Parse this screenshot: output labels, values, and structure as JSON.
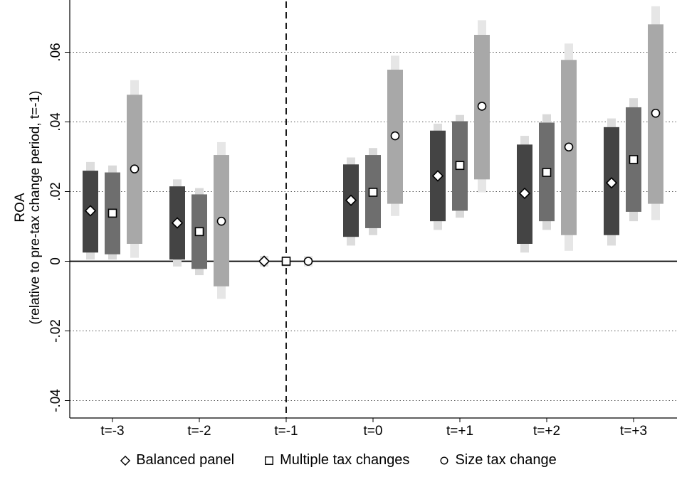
{
  "chart_data": {
    "type": "error-bar",
    "ylabel": "ROA",
    "ylabel_sub": "(relative to pre-tax change period, t=-1)",
    "ylim": [
      -0.045,
      0.075
    ],
    "yticks": [
      -0.04,
      -0.02,
      0,
      0.02,
      0.04,
      0.06
    ],
    "ytick_labels": [
      "-.04",
      "-.02",
      "0",
      ".02",
      ".04",
      ".06"
    ],
    "grid": "horizontal dotted",
    "reference_line_x": "t=-1",
    "categories": [
      "t=-3",
      "t=-2",
      "t=-1",
      "t=0",
      "t=+1",
      "t=+2",
      "t=+3"
    ],
    "legend_position": "bottom",
    "series": [
      {
        "name": "Balanced panel",
        "marker": "diamond",
        "color_bar": "#444444",
        "color_outer": "#dddddd",
        "values": [
          0.0145,
          0.011,
          0.0,
          0.0175,
          0.0245,
          0.0195,
          0.0225
        ],
        "ci_inner": [
          [
            0.0025,
            0.026
          ],
          [
            0.0005,
            0.0215
          ],
          [
            0,
            0
          ],
          [
            0.007,
            0.0278
          ],
          [
            0.0115,
            0.0375
          ],
          [
            0.005,
            0.0335
          ],
          [
            0.0075,
            0.0385
          ]
        ],
        "ci_outer": [
          [
            0.0005,
            0.0285
          ],
          [
            -0.0015,
            0.0235
          ],
          [
            -0.0015,
            0.0015
          ],
          [
            0.0045,
            0.0298
          ],
          [
            0.009,
            0.0395
          ],
          [
            0.0025,
            0.036
          ],
          [
            0.0045,
            0.041
          ]
        ]
      },
      {
        "name": "Multiple tax changes",
        "marker": "square",
        "color_bar": "#6e6e6e",
        "color_outer": "#d9d9d9",
        "values": [
          0.0138,
          0.0085,
          0.0,
          0.0198,
          0.0275,
          0.0255,
          0.0292
        ],
        "ci_inner": [
          [
            0.002,
            0.0255
          ],
          [
            -0.0022,
            0.0192
          ],
          [
            0,
            0
          ],
          [
            0.0095,
            0.0305
          ],
          [
            0.0145,
            0.0402
          ],
          [
            0.0115,
            0.0398
          ],
          [
            0.0142,
            0.0442
          ]
        ],
        "ci_outer": [
          [
            0.0005,
            0.0275
          ],
          [
            -0.004,
            0.021
          ],
          [
            -0.0015,
            0.0015
          ],
          [
            0.0075,
            0.0325
          ],
          [
            0.0125,
            0.042
          ],
          [
            0.009,
            0.0422
          ],
          [
            0.0115,
            0.0468
          ]
        ]
      },
      {
        "name": "Size tax change",
        "marker": "circle",
        "color_bar": "#a8a8a8",
        "color_outer": "#e6e6e6",
        "values": [
          0.0265,
          0.0115,
          0.0,
          0.036,
          0.0445,
          0.0328,
          0.0425
        ],
        "ci_inner": [
          [
            0.005,
            0.0478
          ],
          [
            -0.0072,
            0.0305
          ],
          [
            0,
            0
          ],
          [
            0.0165,
            0.055
          ],
          [
            0.0235,
            0.065
          ],
          [
            0.0075,
            0.0578
          ],
          [
            0.0165,
            0.068
          ]
        ],
        "ci_outer": [
          [
            0.001,
            0.052
          ],
          [
            -0.0108,
            0.0342
          ],
          [
            -0.0015,
            0.0015
          ],
          [
            0.013,
            0.059
          ],
          [
            0.0198,
            0.0692
          ],
          [
            0.003,
            0.0625
          ],
          [
            0.0118,
            0.0732
          ]
        ]
      }
    ]
  }
}
